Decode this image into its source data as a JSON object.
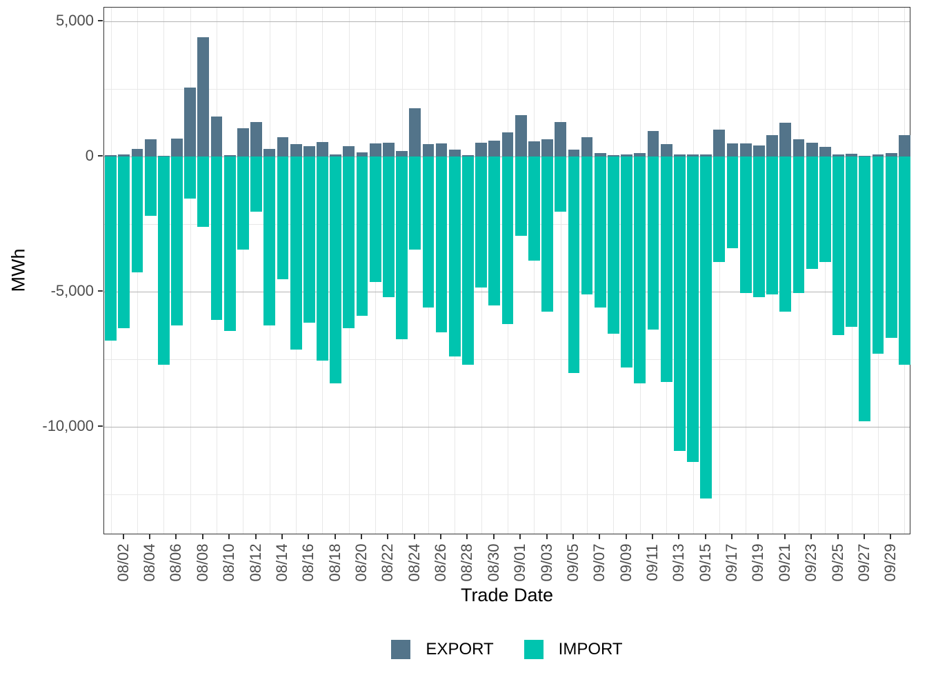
{
  "chart": {
    "y_axis": {
      "title": "MWh",
      "major_tick_values": [
        5000,
        0,
        -5000,
        -10000
      ],
      "major_tick_labels": [
        "5,000",
        "0",
        "-5,000",
        "-10,000"
      ],
      "minor_tick_values": [
        2500,
        -2500,
        -7500,
        -12500
      ]
    },
    "x_axis": {
      "title": "Trade Date",
      "tick_labels": [
        "08/02",
        "08/04",
        "08/06",
        "08/08",
        "08/10",
        "08/12",
        "08/14",
        "08/16",
        "08/18",
        "08/20",
        "08/22",
        "08/24",
        "08/26",
        "08/28",
        "08/30",
        "09/01",
        "09/03",
        "09/05",
        "09/07",
        "09/09",
        "09/11",
        "09/13",
        "09/15",
        "09/17",
        "09/19",
        "09/21",
        "09/23",
        "09/25",
        "09/27",
        "09/29"
      ]
    },
    "legend": [
      {
        "label": "EXPORT",
        "color": "#53748a"
      },
      {
        "label": "IMPORT",
        "color": "#00c4af"
      }
    ],
    "colors": {
      "export": "#53748a",
      "import": "#00c4af",
      "grid_major": "#b3b3b3",
      "grid_minor": "#e8e8e8",
      "panel_border": "#333333",
      "tick_text": "#4d4d4d"
    }
  },
  "chart_data": {
    "type": "bar",
    "title": "",
    "xlabel": "Trade Date",
    "ylabel": "MWh",
    "ylim": [
      -14000,
      5500
    ],
    "grid": true,
    "legend_position": "bottom",
    "bar_orientation": "vertical-diverging",
    "categories": [
      "08/01",
      "08/02",
      "08/03",
      "08/04",
      "08/05",
      "08/06",
      "08/07",
      "08/08",
      "08/09",
      "08/10",
      "08/11",
      "08/12",
      "08/13",
      "08/14",
      "08/15",
      "08/16",
      "08/17",
      "08/18",
      "08/19",
      "08/20",
      "08/21",
      "08/22",
      "08/23",
      "08/24",
      "08/25",
      "08/26",
      "08/27",
      "08/28",
      "08/29",
      "08/30",
      "08/31",
      "09/01",
      "09/02",
      "09/03",
      "09/04",
      "09/05",
      "09/06",
      "09/07",
      "09/08",
      "09/09",
      "09/10",
      "09/11",
      "09/12",
      "09/13",
      "09/14",
      "09/15",
      "09/16",
      "09/17",
      "09/18",
      "09/19",
      "09/20",
      "09/21",
      "09/22",
      "09/23",
      "09/24",
      "09/25",
      "09/26",
      "09/27",
      "09/28",
      "09/29",
      "09/30"
    ],
    "series": [
      {
        "name": "EXPORT",
        "color": "#53748a",
        "values": [
          50,
          70,
          280,
          630,
          20,
          650,
          2550,
          4400,
          1480,
          40,
          1030,
          1260,
          280,
          700,
          460,
          380,
          530,
          60,
          380,
          150,
          480,
          500,
          200,
          1790,
          450,
          490,
          260,
          40,
          510,
          580,
          880,
          1520,
          560,
          640,
          1270,
          250,
          720,
          130,
          50,
          80,
          130,
          940,
          450,
          60,
          70,
          70,
          980,
          480,
          470,
          400,
          780,
          1240,
          620,
          510,
          350,
          60,
          90,
          20,
          70,
          110,
          780
        ]
      },
      {
        "name": "IMPORT",
        "color": "#00c4af",
        "values": [
          -6800,
          -6350,
          -4300,
          -2200,
          -7700,
          -6250,
          -1550,
          -2600,
          -6050,
          -6450,
          -3450,
          -2050,
          -6250,
          -4550,
          -7150,
          -6150,
          -7550,
          -8400,
          -6350,
          -5900,
          -4650,
          -5200,
          -6750,
          -3450,
          -5600,
          -6500,
          -7400,
          -7700,
          -4850,
          -5500,
          -6200,
          -2950,
          -3850,
          -5750,
          -2050,
          -8000,
          -5100,
          -5600,
          -6550,
          -7800,
          -8400,
          -6400,
          -8350,
          -10900,
          -11300,
          -12650,
          -3900,
          -3400,
          -5050,
          -5200,
          -5100,
          -5750,
          -5050,
          -4150,
          -3900,
          -6600,
          -6300,
          -9800,
          -7300,
          -6700,
          -7700
        ]
      }
    ]
  }
}
